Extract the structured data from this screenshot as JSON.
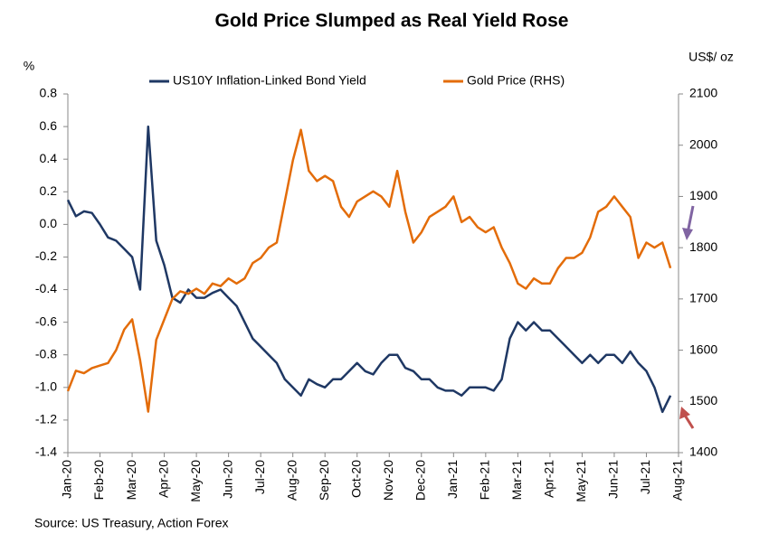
{
  "chart_data": {
    "type": "line",
    "title": "Gold Price Slumped as Real Yield Rose",
    "y_label": "%",
    "y2_label": "US$/ oz",
    "source": "Source: US Treasury, Action Forex",
    "x": [
      0,
      0.25,
      0.5,
      0.75,
      1,
      1.25,
      1.5,
      1.75,
      2,
      2.25,
      2.5,
      2.75,
      3,
      3.25,
      3.5,
      3.75,
      4,
      4.25,
      4.5,
      4.75,
      5,
      5.25,
      5.5,
      5.75,
      6,
      6.25,
      6.5,
      6.75,
      7,
      7.25,
      7.5,
      7.75,
      8,
      8.25,
      8.5,
      8.75,
      9,
      9.25,
      9.5,
      9.75,
      10,
      10.25,
      10.5,
      10.75,
      11,
      11.25,
      11.5,
      11.75,
      12,
      12.25,
      12.5,
      12.75,
      13,
      13.25,
      13.5,
      13.75,
      14,
      14.25,
      14.5,
      14.75,
      15,
      15.25,
      15.5,
      15.75,
      16,
      16.25,
      16.5,
      16.75,
      17,
      17.25,
      17.5,
      17.75,
      18,
      18.25,
      18.5,
      18.75
    ],
    "xlim": [
      0,
      19
    ],
    "xticks": [
      {
        "value": 0,
        "label": "Jan-20"
      },
      {
        "value": 1,
        "label": "Feb-20"
      },
      {
        "value": 2,
        "label": "Mar-20"
      },
      {
        "value": 3,
        "label": "Apr-20"
      },
      {
        "value": 4,
        "label": "May-20"
      },
      {
        "value": 5,
        "label": "Jun-20"
      },
      {
        "value": 6,
        "label": "Jul-20"
      },
      {
        "value": 7,
        "label": "Aug-20"
      },
      {
        "value": 8,
        "label": "Sep-20"
      },
      {
        "value": 9,
        "label": "Oct-20"
      },
      {
        "value": 10,
        "label": "Nov-20"
      },
      {
        "value": 11,
        "label": "Dec-20"
      },
      {
        "value": 12,
        "label": "Jan-21"
      },
      {
        "value": 13,
        "label": "Feb-21"
      },
      {
        "value": 14,
        "label": "Mar-21"
      },
      {
        "value": 15,
        "label": "Apr-21"
      },
      {
        "value": 16,
        "label": "May-21"
      },
      {
        "value": 17,
        "label": "Jun-21"
      },
      {
        "value": 18,
        "label": "Jul-21"
      },
      {
        "value": 19,
        "label": "Aug-21"
      }
    ],
    "ylim": [
      -1.4,
      0.8
    ],
    "yticks": [
      {
        "value": -1.4,
        "label": "-1.4"
      },
      {
        "value": -1.2,
        "label": "-1.2"
      },
      {
        "value": -1.0,
        "label": "-1.0"
      },
      {
        "value": -0.8,
        "label": "-0.8"
      },
      {
        "value": -0.6,
        "label": "-0.6"
      },
      {
        "value": -0.4,
        "label": "-0.4"
      },
      {
        "value": -0.2,
        "label": "-0.2"
      },
      {
        "value": 0,
        "label": "0.0"
      },
      {
        "value": 0.2,
        "label": "0.2"
      },
      {
        "value": 0.4,
        "label": "0.4"
      },
      {
        "value": 0.6,
        "label": "0.6"
      },
      {
        "value": 0.8,
        "label": "0.8"
      }
    ],
    "y2lim": [
      1400,
      2100
    ],
    "y2ticks": [
      1400,
      1500,
      1600,
      1700,
      1800,
      1900,
      2000,
      2100
    ],
    "series": [
      {
        "name": "US10Y Inflation-Linked Bond Yield",
        "color": "#1f3864",
        "values": [
          0.15,
          0.05,
          0.08,
          0.07,
          0.0,
          -0.08,
          -0.1,
          -0.15,
          -0.2,
          -0.4,
          0.6,
          -0.1,
          -0.25,
          -0.45,
          -0.48,
          -0.4,
          -0.45,
          -0.45,
          -0.42,
          -0.4,
          -0.45,
          -0.5,
          -0.6,
          -0.7,
          -0.75,
          -0.8,
          -0.85,
          -0.95,
          -1.0,
          -1.05,
          -0.95,
          -0.98,
          -1.0,
          -0.95,
          -0.95,
          -0.9,
          -0.85,
          -0.9,
          -0.92,
          -0.85,
          -0.8,
          -0.8,
          -0.88,
          -0.9,
          -0.95,
          -0.95,
          -1.0,
          -1.02,
          -1.02,
          -1.05,
          -1.0,
          -1.0,
          -1.0,
          -1.02,
          -0.95,
          -0.7,
          -0.6,
          -0.65,
          -0.6,
          -0.65,
          -0.65,
          -0.7,
          -0.75,
          -0.8,
          -0.85,
          -0.8,
          -0.85,
          -0.8,
          -0.8,
          -0.85,
          -0.78,
          -0.85,
          -0.9,
          -1.0,
          -1.15,
          -1.05
        ]
      },
      {
        "name": "Gold Price (RHS)",
        "color": "#e36c09",
        "axis": "y2",
        "values": [
          1520,
          1560,
          1555,
          1565,
          1570,
          1575,
          1600,
          1640,
          1660,
          1580,
          1480,
          1620,
          1660,
          1700,
          1715,
          1710,
          1720,
          1710,
          1730,
          1725,
          1740,
          1730,
          1740,
          1770,
          1780,
          1800,
          1810,
          1890,
          1970,
          2030,
          1950,
          1930,
          1940,
          1930,
          1880,
          1860,
          1890,
          1900,
          1910,
          1900,
          1880,
          1950,
          1870,
          1810,
          1830,
          1860,
          1870,
          1880,
          1900,
          1850,
          1860,
          1840,
          1830,
          1840,
          1800,
          1770,
          1730,
          1720,
          1740,
          1730,
          1730,
          1760,
          1780,
          1780,
          1790,
          1820,
          1870,
          1880,
          1900,
          1880,
          1860,
          1780,
          1810,
          1800,
          1810,
          1760
        ]
      }
    ],
    "legend": "top",
    "grid": false
  }
}
